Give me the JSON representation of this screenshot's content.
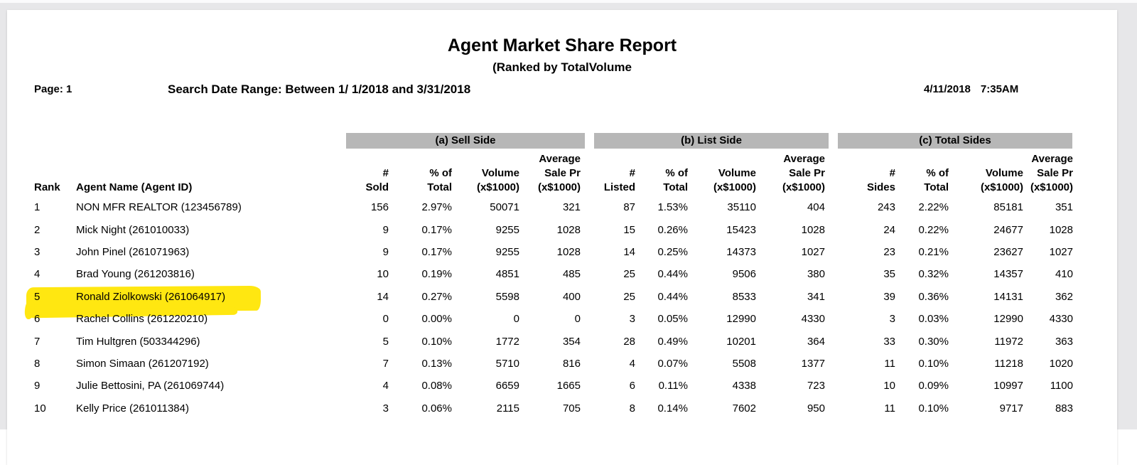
{
  "report": {
    "title": "Agent Market Share Report",
    "subtitle": "(Ranked by TotalVolume",
    "page_label": "Page: 1",
    "search_range": "Search Date Range: Between 1/ 1/2018 and 3/31/2018",
    "date": "4/11/2018",
    "time": "7:35AM"
  },
  "colors": {
    "canvas_bg": "#e7e7e9",
    "section_bar": "#b7b7b7",
    "highlight": "#ffe711"
  },
  "sections": [
    {
      "label": "(a) Sell Side"
    },
    {
      "label": "(b) List Side"
    },
    {
      "label": "(c) Total Sides"
    }
  ],
  "table": {
    "header_columns": [
      {
        "id": "rank",
        "align": "left",
        "lines": [
          "Rank"
        ]
      },
      {
        "id": "agent-name",
        "align": "left",
        "lines": [
          "Agent Name (Agent ID)"
        ]
      },
      {
        "id": "sold",
        "align": "right",
        "lines": [
          "#",
          "Sold"
        ]
      },
      {
        "id": "pct-total-a",
        "align": "right",
        "lines": [
          "% of",
          "Total"
        ]
      },
      {
        "id": "volume-a",
        "align": "right",
        "lines": [
          "Volume",
          "(x$1000)"
        ]
      },
      {
        "id": "avg-sale-pr-a",
        "align": "right",
        "lines": [
          "Average",
          "Sale Pr",
          "(x$1000)"
        ]
      },
      {
        "id": "listed",
        "align": "right",
        "lines": [
          "#",
          "Listed"
        ]
      },
      {
        "id": "pct-total-b",
        "align": "right",
        "lines": [
          "% of",
          "Total"
        ]
      },
      {
        "id": "volume-b",
        "align": "right",
        "lines": [
          "Volume",
          "(x$1000)"
        ]
      },
      {
        "id": "avg-sale-pr-b",
        "align": "right",
        "lines": [
          "Average",
          "Sale Pr",
          "(x$1000)"
        ]
      },
      {
        "id": "sides",
        "align": "right",
        "lines": [
          "#",
          "Sides"
        ]
      },
      {
        "id": "pct-total-c",
        "align": "right",
        "lines": [
          "% of",
          "Total"
        ]
      },
      {
        "id": "volume-c",
        "align": "right",
        "lines": [
          "Volume",
          "(x$1000)"
        ]
      },
      {
        "id": "avg-sale-pr-c",
        "align": "right",
        "lines": [
          "Average",
          "Sale Pr",
          "(x$1000)"
        ]
      }
    ],
    "rows": [
      {
        "highlighted": false,
        "cells": [
          "1",
          "NON MFR REALTOR (123456789)",
          "156",
          "2.97%",
          "50071",
          "321",
          "87",
          "1.53%",
          "35110",
          "404",
          "243",
          "2.22%",
          "85181",
          "351"
        ]
      },
      {
        "highlighted": false,
        "cells": [
          "2",
          "Mick Night (261010033)",
          "9",
          "0.17%",
          "9255",
          "1028",
          "15",
          "0.26%",
          "15423",
          "1028",
          "24",
          "0.22%",
          "24677",
          "1028"
        ]
      },
      {
        "highlighted": false,
        "cells": [
          "3",
          "John Pinel (261071963)",
          "9",
          "0.17%",
          "9255",
          "1028",
          "14",
          "0.25%",
          "14373",
          "1027",
          "23",
          "0.21%",
          "23627",
          "1027"
        ]
      },
      {
        "highlighted": false,
        "cells": [
          "4",
          "Brad Young (261203816)",
          "10",
          "0.19%",
          "4851",
          "485",
          "25",
          "0.44%",
          "9506",
          "380",
          "35",
          "0.32%",
          "14357",
          "410"
        ]
      },
      {
        "highlighted": true,
        "cells": [
          "5",
          "Ronald Ziolkowski (261064917)",
          "14",
          "0.27%",
          "5598",
          "400",
          "25",
          "0.44%",
          "8533",
          "341",
          "39",
          "0.36%",
          "14131",
          "362"
        ]
      },
      {
        "highlighted": false,
        "cells": [
          "6",
          "Rachel Collins (261220210)",
          "0",
          "0.00%",
          "0",
          "0",
          "3",
          "0.05%",
          "12990",
          "4330",
          "3",
          "0.03%",
          "12990",
          "4330"
        ]
      },
      {
        "highlighted": false,
        "cells": [
          "7",
          "Tim Hultgren (503344296)",
          "5",
          "0.10%",
          "1772",
          "354",
          "28",
          "0.49%",
          "10201",
          "364",
          "33",
          "0.30%",
          "11972",
          "363"
        ]
      },
      {
        "highlighted": false,
        "cells": [
          "8",
          "Simon Simaan (261207192)",
          "7",
          "0.13%",
          "5710",
          "816",
          "4",
          "0.07%",
          "5508",
          "1377",
          "11",
          "0.10%",
          "11218",
          "1020"
        ]
      },
      {
        "highlighted": false,
        "cells": [
          "9",
          "Julie Bettosini, PA (261069744)",
          "4",
          "0.08%",
          "6659",
          "1665",
          "6",
          "0.11%",
          "4338",
          "723",
          "10",
          "0.09%",
          "10997",
          "1100"
        ]
      },
      {
        "highlighted": false,
        "cells": [
          "10",
          "Kelly Price (261011384)",
          "3",
          "0.06%",
          "2115",
          "705",
          "8",
          "0.14%",
          "7602",
          "950",
          "11",
          "0.10%",
          "9717",
          "883"
        ]
      }
    ]
  }
}
